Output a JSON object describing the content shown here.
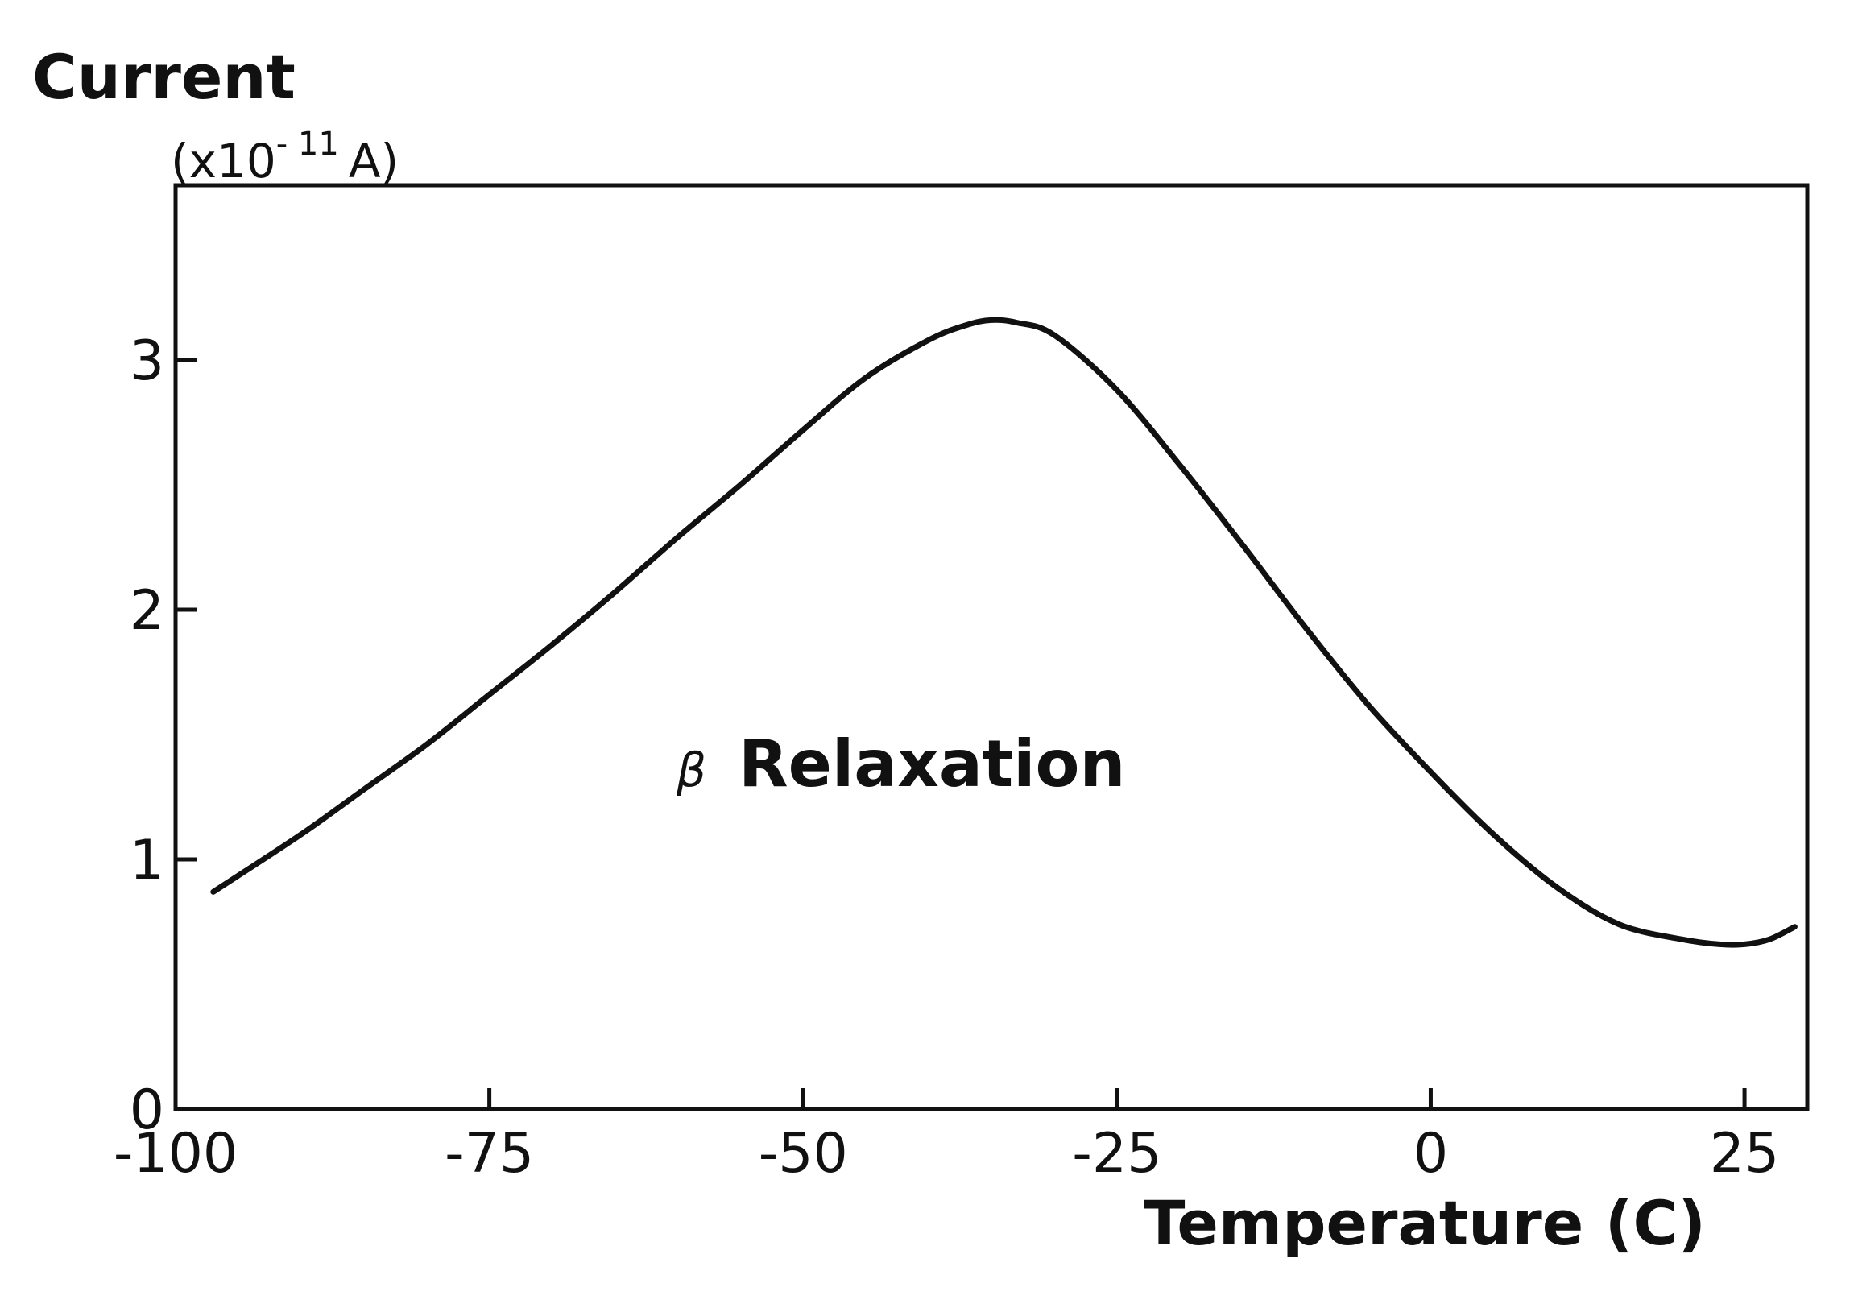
{
  "chart_data": {
    "type": "line",
    "ylabel": "Current",
    "ylabel_unit": "(x10",
    "ylabel_unit_exp": "- 11",
    "ylabel_unit_suffix": "A)",
    "xlabel": "Temperature (C)",
    "annotation_symbol": "β",
    "annotation_text": "Relaxation",
    "xlim": [
      -100,
      30
    ],
    "ylim": [
      0,
      3.7
    ],
    "grid": false,
    "x_ticks": [
      -100,
      -75,
      -50,
      -25,
      0,
      25
    ],
    "x_tick_labels": [
      "-100",
      "-75",
      "-50",
      "-25",
      "0",
      "25"
    ],
    "y_ticks": [
      0,
      1,
      2,
      3
    ],
    "y_tick_labels": [
      "0",
      "1",
      "2",
      "3"
    ],
    "series": [
      {
        "x": [
          -97,
          -90,
          -85,
          -80,
          -75,
          -70,
          -65,
          -60,
          -55,
          -50,
          -45,
          -40,
          -37,
          -35,
          -33,
          -30,
          -25,
          -20,
          -15,
          -10,
          -5,
          0,
          5,
          10,
          15,
          20,
          23,
          25,
          27,
          29
        ],
        "y": [
          0.87,
          1.1,
          1.28,
          1.46,
          1.66,
          1.86,
          2.07,
          2.29,
          2.5,
          2.72,
          2.93,
          3.08,
          3.14,
          3.16,
          3.15,
          3.1,
          2.88,
          2.58,
          2.26,
          1.93,
          1.62,
          1.35,
          1.1,
          0.89,
          0.74,
          0.68,
          0.66,
          0.66,
          0.68,
          0.73
        ]
      }
    ]
  }
}
